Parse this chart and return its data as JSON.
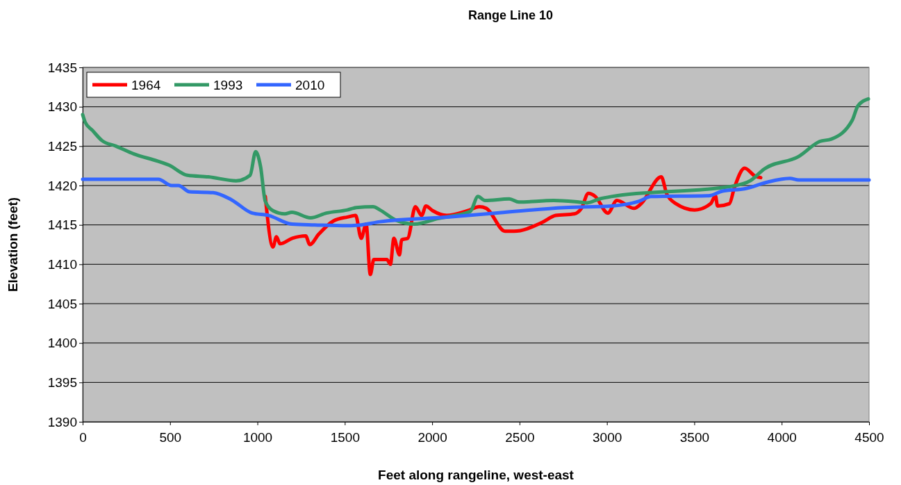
{
  "chart_data": {
    "type": "line",
    "title": "Range Line 10",
    "xlabel": "Feet along rangeline, west-east",
    "ylabel": "Elevation (feet)",
    "xlim": [
      0,
      4500
    ],
    "xticks": [
      0,
      500,
      1000,
      1500,
      2000,
      2500,
      3000,
      3500,
      4000,
      4500
    ],
    "ylim": [
      1390,
      1435
    ],
    "yticks": [
      1390,
      1395,
      1400,
      1405,
      1410,
      1415,
      1420,
      1425,
      1430,
      1435
    ],
    "grid": "y",
    "legend": "top left",
    "marker": "none",
    "line_style": "solid",
    "series": [
      {
        "name": "1964",
        "color": "#ff0000",
        "x": [
          1045,
          1089,
          1109,
          1129,
          1200,
          1276,
          1300,
          1350,
          1435,
          1515,
          1562,
          1594,
          1622,
          1646,
          1666,
          1741,
          1761,
          1781,
          1813,
          1825,
          1860,
          1904,
          1940,
          1964,
          2003,
          2083,
          2203,
          2270,
          2310,
          2417,
          2469,
          2628,
          2707,
          2814,
          2854,
          2894,
          2934,
          3005,
          3057,
          3156,
          3196,
          3311,
          3343,
          3395,
          3502,
          3594,
          3621,
          3633,
          3701,
          3729,
          3788,
          3848,
          3880
        ],
        "values": [
          1418.6,
          1412.2,
          1413.5,
          1412.6,
          1413.3,
          1413.6,
          1412.5,
          1413.8,
          1415.5,
          1416.0,
          1416.2,
          1413.3,
          1415.1,
          1408.7,
          1410.6,
          1410.6,
          1410.0,
          1413.3,
          1411.2,
          1413.1,
          1413.3,
          1417.3,
          1416.2,
          1417.4,
          1416.8,
          1416.2,
          1416.8,
          1417.3,
          1417.1,
          1414.2,
          1414.2,
          1415.3,
          1416.2,
          1416.4,
          1417.1,
          1419.0,
          1418.6,
          1416.5,
          1418.1,
          1417.1,
          1417.7,
          1421.1,
          1418.9,
          1417.7,
          1416.9,
          1417.7,
          1418.7,
          1417.4,
          1417.7,
          1419.7,
          1422.2,
          1421.2,
          1421.0
        ]
      },
      {
        "name": "1993",
        "color": "#339966",
        "x": [
          0,
          15,
          56,
          111,
          191,
          294,
          429,
          493,
          600,
          720,
          878,
          958,
          990,
          1018,
          1045,
          1089,
          1157,
          1197,
          1304,
          1395,
          1515,
          1566,
          1662,
          1701,
          1793,
          1900,
          2031,
          2218,
          2262,
          2302,
          2441,
          2496,
          2695,
          2838,
          2886,
          2958,
          3025,
          3713,
          3820,
          3900,
          4098,
          4218,
          4285,
          4404,
          4436,
          4496
        ],
        "values": [
          1429.0,
          1428.0,
          1427.0,
          1425.7,
          1425.0,
          1424.0,
          1423.1,
          1422.6,
          1421.3,
          1421.1,
          1420.6,
          1421.3,
          1424.3,
          1422.4,
          1418.0,
          1416.8,
          1416.4,
          1416.6,
          1415.9,
          1416.5,
          1416.9,
          1417.2,
          1417.3,
          1416.9,
          1415.6,
          1415.1,
          1415.8,
          1416.7,
          1418.6,
          1418.1,
          1418.3,
          1417.9,
          1418.1,
          1417.9,
          1417.8,
          1418.3,
          1418.6,
          1419.9,
          1420.6,
          1422.1,
          1423.7,
          1425.6,
          1425.9,
          1428.3,
          1430.1,
          1431.0
        ]
      },
      {
        "name": "2010",
        "color": "#3366ff",
        "x": [
          0,
          433,
          509,
          548,
          612,
          747,
          851,
          970,
          1065,
          1197,
          1328,
          1515,
          1594,
          1701,
          2099,
          2361,
          2759,
          3025,
          3184,
          3252,
          3582,
          3661,
          3792,
          3912,
          4047,
          4098,
          4500
        ],
        "values": [
          1420.8,
          1420.8,
          1420.0,
          1420.0,
          1419.2,
          1419.1,
          1418.2,
          1416.5,
          1416.2,
          1415.1,
          1415.0,
          1414.9,
          1415.0,
          1415.4,
          1416.0,
          1416.5,
          1417.2,
          1417.4,
          1418.0,
          1418.6,
          1418.7,
          1419.3,
          1419.6,
          1420.4,
          1420.9,
          1420.7,
          1420.7
        ]
      }
    ]
  }
}
